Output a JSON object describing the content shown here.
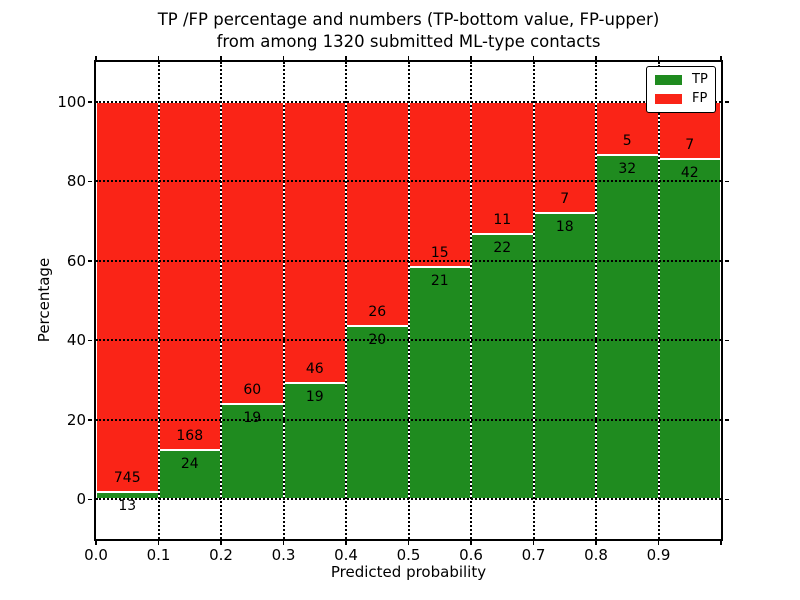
{
  "colors": {
    "tp_green": "#1f8b1f",
    "fp_red": "#fa2417",
    "grid": "#000000",
    "text": "#000000",
    "background": "#ffffff"
  },
  "chart_data": {
    "type": "bar",
    "stacked": true,
    "percent_normalized": true,
    "title": "TP /FP percentage and numbers (TP-bottom value, FP-upper)\nfrom among 1320 submitted ML-type contacts",
    "xlabel": "Predicted probability",
    "ylabel": "Percentage",
    "bins": {
      "start": 0.0,
      "width": 0.1,
      "count": 10
    },
    "x_tick_labels": [
      "0.0",
      "0.1",
      "0.2",
      "0.3",
      "0.4",
      "0.5",
      "0.6",
      "0.7",
      "0.8",
      "0.9"
    ],
    "y_tick_values": [
      0,
      20,
      40,
      60,
      80,
      100
    ],
    "xlim": [
      0.0,
      1.0
    ],
    "ylim": [
      -10,
      110
    ],
    "grid": true,
    "grid_style": "dotted",
    "legend": {
      "position": "upper right",
      "entries": [
        "TP",
        "FP"
      ]
    },
    "series": [
      {
        "name": "TP",
        "color": "#1f8b1f",
        "values": [
          13,
          24,
          19,
          19,
          20,
          21,
          22,
          18,
          32,
          42
        ]
      },
      {
        "name": "FP",
        "color": "#fa2417",
        "values": [
          745,
          168,
          60,
          46,
          26,
          15,
          11,
          7,
          5,
          7
        ]
      }
    ]
  }
}
